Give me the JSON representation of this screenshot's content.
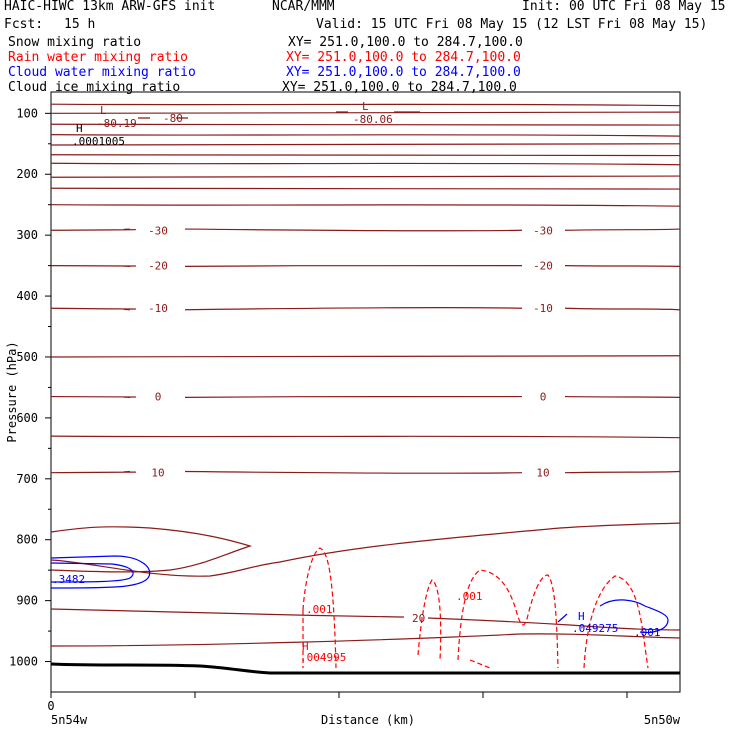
{
  "header": {
    "title": "HAIC-HIWC 13km ARW-GFS init",
    "org": "NCAR/MMM",
    "init": "Init: 00 UTC Fri 08 May 15",
    "fcst_label": "Fcst:",
    "fcst_value": "15 h",
    "valid": "Valid: 15 UTC Fri 08 May 15 (12 LST Fri 08 May 15)"
  },
  "fields": [
    {
      "label": "Snow mixing ratio",
      "xy": "XY= 251.0,100.0 to 284.7,100.0",
      "color": "#000000"
    },
    {
      "label": "Rain water mixing ratio",
      "xy": "XY= 251.0,100.0 to 284.7,100.0",
      "color": "#ff0000"
    },
    {
      "label": "Cloud water mixing ratio",
      "xy": "XY= 251.0,100.0 to 284.7,100.0",
      "color": "#0000ff"
    },
    {
      "label": "Cloud ice mixing ratio",
      "xy": "XY= 251.0,100.0 to 284.7,100.0",
      "color": "#000000"
    }
  ],
  "chart_data": {
    "type": "cross-section",
    "ylabel": "Pressure (hPa)",
    "xlabel": "Distance (km)",
    "yticks": [
      100,
      200,
      300,
      400,
      500,
      600,
      700,
      800,
      900,
      1000
    ],
    "ylim": [
      1050,
      65
    ],
    "x_origin_label": "0",
    "x_left_label": "5n54w",
    "x_right_label": "5n50w",
    "colors": {
      "temp": "#8b1a1a",
      "rain": "#ff0000",
      "cloud": "#0000ff",
      "terrain": "#000000"
    },
    "isotherms": [
      {
        "p": 85
      },
      {
        "p": 100
      },
      {
        "p": 118
      },
      {
        "p": 135
      },
      {
        "p": 152
      },
      {
        "p": 168
      },
      {
        "p": 182
      },
      {
        "p": 205
      },
      {
        "p": 223
      },
      {
        "p": 250
      },
      {
        "p": 292,
        "label": "-30"
      },
      {
        "p": 350,
        "label": "-20"
      },
      {
        "p": 420,
        "label": "-10"
      },
      {
        "p": 500
      },
      {
        "p": 565,
        "label": "0"
      },
      {
        "p": 630
      },
      {
        "p": 690,
        "label": "10"
      }
    ],
    "annotations": [
      {
        "text": "L",
        "color": "#8b1a1a"
      },
      {
        "text": "-80.19",
        "color": "#8b1a1a"
      },
      {
        "text": "-80",
        "color": "#8b1a1a"
      },
      {
        "text": "L",
        "color": "#8b1a1a"
      },
      {
        "text": "-80.06",
        "color": "#8b1a1a"
      },
      {
        "text": "H",
        "color": "#000000"
      },
      {
        "text": ".0001005",
        "color": "#000000"
      },
      {
        "text": ".001",
        "color": "#ff0000"
      },
      {
        "text": ".001",
        "color": "#ff0000"
      },
      {
        "text": "H",
        "color": "#ff0000"
      },
      {
        "text": ".004995",
        "color": "#ff0000"
      },
      {
        "text": "20",
        "color": "#8b1a1a"
      },
      {
        "text": "H",
        "color": "#0000ff"
      },
      {
        "text": ".049275",
        "color": "#0000ff"
      },
      {
        "text": ".001",
        "color": "#0000ff"
      },
      {
        "text": ".3482",
        "color": "#0000ff"
      }
    ]
  }
}
